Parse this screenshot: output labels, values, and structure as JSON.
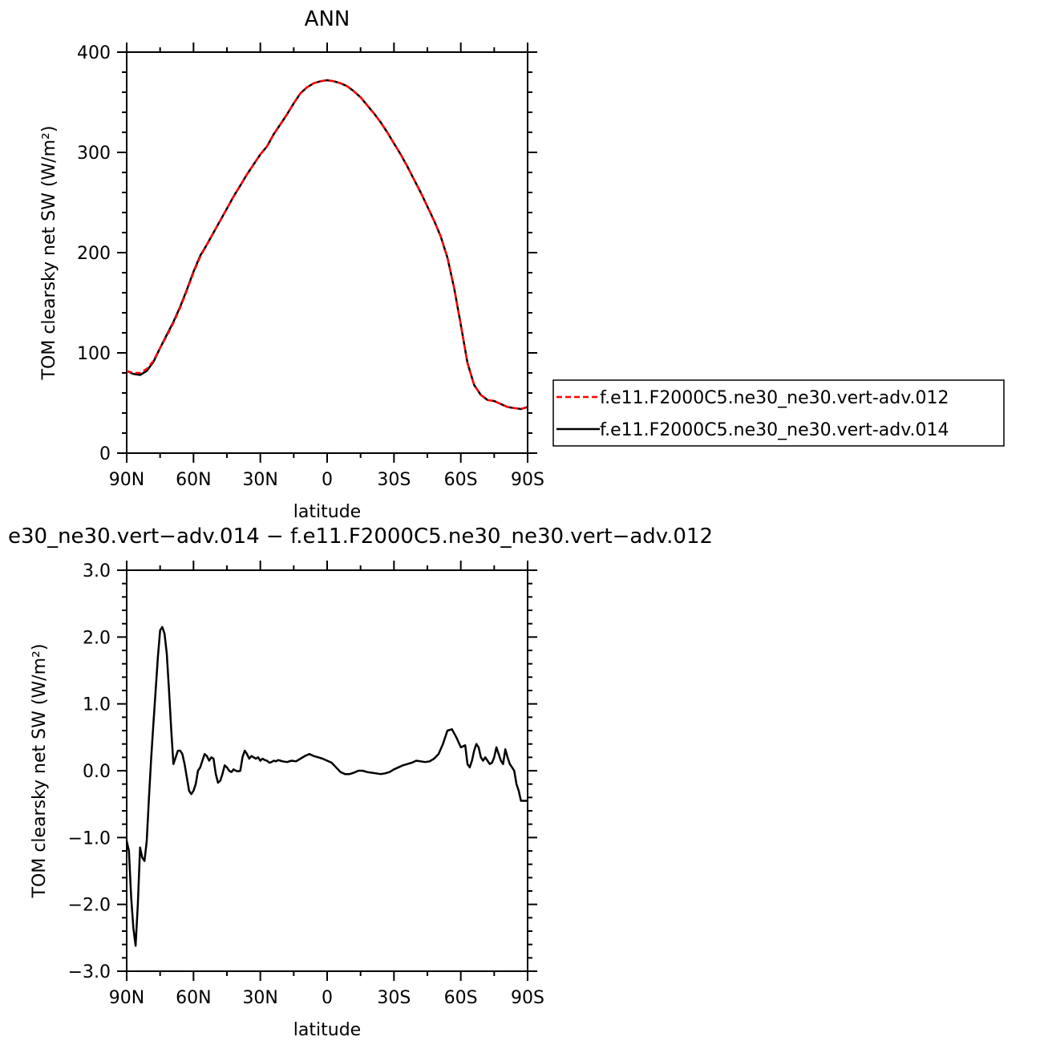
{
  "chart_data": [
    {
      "type": "line",
      "title": "ANN",
      "xlabel": "latitude",
      "ylabel": "TOM clearsky net SW (W/m²)",
      "xlim": [
        90,
        -90
      ],
      "ylim": [
        0,
        400
      ],
      "x_ticks": [
        90,
        60,
        30,
        0,
        -30,
        -60,
        -90
      ],
      "x_tick_labels": [
        "90N",
        "60N",
        "30N",
        "0",
        "30S",
        "60S",
        "90S"
      ],
      "y_ticks": [
        0,
        100,
        200,
        300,
        400
      ],
      "y_tick_labels": [
        "0",
        "100",
        "200",
        "300",
        "400"
      ],
      "grid": false,
      "legend_position": "right",
      "x": [
        90,
        87,
        84,
        81,
        78,
        75,
        72,
        69,
        66,
        63,
        60,
        57,
        54,
        51,
        48,
        45,
        42,
        39,
        36,
        33,
        30,
        27,
        24,
        21,
        18,
        15,
        12,
        9,
        6,
        3,
        0,
        -3,
        -6,
        -9,
        -12,
        -15,
        -18,
        -21,
        -24,
        -27,
        -30,
        -33,
        -36,
        -39,
        -42,
        -45,
        -48,
        -51,
        -54,
        -57,
        -60,
        -63,
        -66,
        -69,
        -72,
        -75,
        -78,
        -81,
        -84,
        -87,
        -90
      ],
      "series": [
        {
          "name": "f.e11.F2000C5.ne30_ne30.vert-adv.012",
          "color": "#ff0000",
          "style": "dashed",
          "values": [
            82,
            80,
            80,
            84,
            92,
            105,
            117,
            130,
            145,
            162,
            180,
            196,
            208,
            220,
            232,
            244,
            256,
            267,
            278,
            288,
            298,
            306,
            318,
            328,
            338,
            349,
            359,
            365,
            369,
            371,
            372,
            371,
            369,
            366,
            361,
            355,
            347,
            339,
            330,
            320,
            309,
            298,
            286,
            273,
            260,
            246,
            232,
            216,
            195,
            165,
            128,
            90,
            68,
            58,
            53,
            52,
            49,
            46,
            45,
            44,
            46
          ]
        },
        {
          "name": "f.e11.F2000C5.ne30_ne30.vert-adv.014",
          "color": "#000000",
          "style": "solid",
          "values": [
            82,
            79,
            78,
            82,
            91,
            105,
            118,
            131,
            146,
            163,
            181,
            197,
            208,
            220,
            232,
            244,
            256,
            267,
            278,
            288,
            298,
            306,
            318,
            328,
            338,
            349,
            359,
            365,
            369,
            371,
            372,
            371,
            369,
            366,
            361,
            355,
            347,
            339,
            330,
            320,
            309,
            298,
            286,
            273,
            260,
            246,
            232,
            216,
            195,
            165,
            128,
            90,
            68,
            58,
            53,
            52,
            49,
            46,
            45,
            44,
            46
          ]
        }
      ]
    },
    {
      "type": "line",
      "title": "e30_ne30.vert−adv.014 − f.e11.F2000C5.ne30_ne30.vert−adv.012",
      "xlabel": "latitude",
      "ylabel": "TOM clearsky net SW (W/m²)",
      "xlim": [
        90,
        -90
      ],
      "ylim": [
        -3.0,
        3.0
      ],
      "x_ticks": [
        90,
        60,
        30,
        0,
        -30,
        -60,
        -90
      ],
      "x_tick_labels": [
        "90N",
        "60N",
        "30N",
        "0",
        "30S",
        "60S",
        "90S"
      ],
      "y_ticks": [
        -3.0,
        -2.0,
        -1.0,
        0.0,
        1.0,
        2.0,
        3.0
      ],
      "y_tick_labels": [
        "−3.0",
        "−2.0",
        "−1.0",
        "0.0",
        "1.0",
        "2.0",
        "3.0"
      ],
      "grid": false,
      "series": [
        {
          "color": "#000000",
          "style": "solid",
          "x": [
            90,
            89,
            88,
            87,
            86,
            85,
            84,
            83,
            82,
            81,
            80,
            79,
            78,
            77,
            76,
            75,
            74,
            73,
            72,
            71,
            70,
            69,
            68,
            67,
            66,
            65,
            64,
            63,
            62,
            61,
            60,
            59,
            58,
            57,
            56,
            55,
            54,
            53,
            52,
            51,
            50,
            49,
            48,
            47,
            46,
            45,
            44,
            43,
            42,
            41,
            40,
            39,
            38,
            37,
            36,
            35,
            34,
            33,
            32,
            31,
            30,
            29,
            28,
            27,
            26,
            25,
            24,
            23,
            22,
            21,
            20,
            18,
            16,
            14,
            12,
            10,
            8,
            6,
            4,
            2,
            0,
            -2,
            -4,
            -6,
            -8,
            -10,
            -12,
            -14,
            -16,
            -18,
            -20,
            -22,
            -24,
            -26,
            -28,
            -30,
            -32,
            -34,
            -36,
            -38,
            -40,
            -42,
            -44,
            -46,
            -48,
            -50,
            -52,
            -54,
            -56,
            -58,
            -60,
            -62,
            -63,
            -64,
            -65,
            -66,
            -67,
            -68,
            -69,
            -70,
            -71,
            -72,
            -73,
            -74,
            -75,
            -76,
            -77,
            -78,
            -79,
            -80,
            -81,
            -82,
            -83,
            -84,
            -85,
            -86,
            -87,
            -88,
            -89,
            -90
          ],
          "values": [
            -1.05,
            -1.2,
            -1.9,
            -2.35,
            -2.62,
            -2.0,
            -1.15,
            -1.3,
            -1.35,
            -1.05,
            -0.4,
            0.2,
            0.7,
            1.2,
            1.7,
            2.1,
            2.15,
            2.05,
            1.75,
            1.2,
            0.6,
            0.1,
            0.2,
            0.3,
            0.3,
            0.25,
            0.1,
            -0.1,
            -0.3,
            -0.35,
            -0.3,
            -0.2,
            0.0,
            0.05,
            0.15,
            0.25,
            0.22,
            0.15,
            0.2,
            0.18,
            -0.05,
            -0.18,
            -0.15,
            -0.05,
            0.08,
            0.05,
            0.0,
            -0.02,
            0.02,
            0.0,
            -0.01,
            0.0,
            0.2,
            0.3,
            0.25,
            0.18,
            0.22,
            0.2,
            0.18,
            0.2,
            0.15,
            0.18,
            0.16,
            0.15,
            0.12,
            0.13,
            0.15,
            0.14,
            0.16,
            0.15,
            0.14,
            0.13,
            0.15,
            0.14,
            0.18,
            0.22,
            0.25,
            0.22,
            0.2,
            0.18,
            0.15,
            0.12,
            0.05,
            -0.02,
            -0.05,
            -0.05,
            -0.03,
            0.0,
            0.0,
            -0.02,
            -0.03,
            -0.04,
            -0.05,
            -0.04,
            -0.02,
            0.02,
            0.05,
            0.08,
            0.1,
            0.12,
            0.15,
            0.14,
            0.13,
            0.14,
            0.18,
            0.25,
            0.4,
            0.6,
            0.62,
            0.5,
            0.35,
            0.38,
            0.1,
            0.05,
            0.15,
            0.3,
            0.4,
            0.35,
            0.2,
            0.15,
            0.2,
            0.15,
            0.1,
            0.12,
            0.2,
            0.35,
            0.25,
            0.15,
            0.1,
            0.32,
            0.2,
            0.1,
            0.05,
            0.0,
            -0.2,
            -0.3,
            -0.45,
            -0.45,
            -0.45,
            -0.45
          ]
        }
      ]
    }
  ]
}
